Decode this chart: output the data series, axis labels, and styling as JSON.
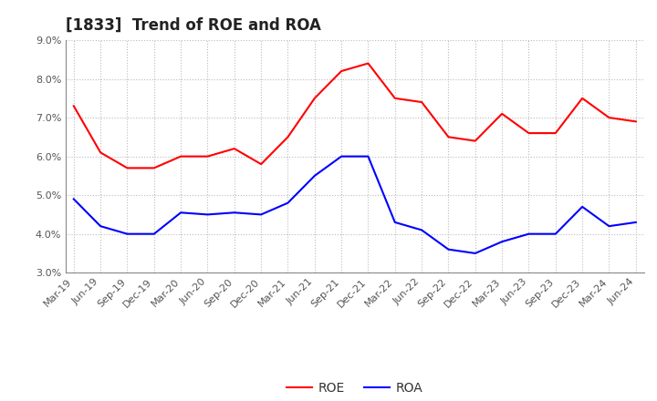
{
  "title": "[1833]  Trend of ROE and ROA",
  "labels": [
    "Mar-19",
    "Jun-19",
    "Sep-19",
    "Dec-19",
    "Mar-20",
    "Jun-20",
    "Sep-20",
    "Dec-20",
    "Mar-21",
    "Jun-21",
    "Sep-21",
    "Dec-21",
    "Mar-22",
    "Jun-22",
    "Sep-22",
    "Dec-22",
    "Mar-23",
    "Jun-23",
    "Sep-23",
    "Dec-23",
    "Mar-24",
    "Jun-24"
  ],
  "ROE": [
    7.3,
    6.1,
    5.7,
    5.7,
    6.0,
    6.0,
    6.2,
    5.8,
    6.5,
    7.5,
    8.2,
    8.4,
    7.5,
    7.4,
    6.5,
    6.4,
    7.1,
    6.6,
    6.6,
    7.5,
    7.0,
    6.9
  ],
  "ROA": [
    4.9,
    4.2,
    4.0,
    4.0,
    4.55,
    4.5,
    4.55,
    4.5,
    4.8,
    5.5,
    6.0,
    6.0,
    4.3,
    4.1,
    3.6,
    3.5,
    3.8,
    4.0,
    4.0,
    4.7,
    4.2,
    4.3
  ],
  "roe_color": "#FF0000",
  "roa_color": "#0000FF",
  "ylim_min": 3.0,
  "ylim_max": 9.0,
  "yticks": [
    3.0,
    4.0,
    5.0,
    6.0,
    7.0,
    8.0,
    9.0
  ],
  "background_color": "#FFFFFF",
  "grid_color": "#AAAAAA",
  "title_fontsize": 12,
  "axis_fontsize": 8,
  "legend_fontsize": 10,
  "line_width": 1.5
}
